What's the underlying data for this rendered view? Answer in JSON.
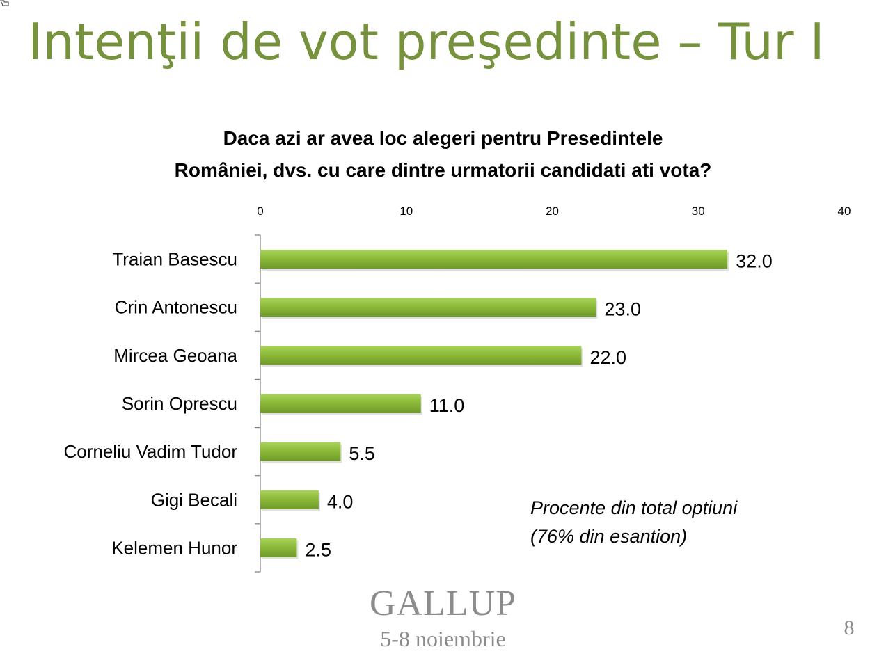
{
  "slide": {
    "title": "Intenţii de vot preşedinte – Tur I",
    "page_number": "8"
  },
  "chart_data": {
    "type": "bar",
    "orientation": "horizontal",
    "title_lines": [
      "Daca azi ar avea loc alegeri pentru Presedintele",
      "României, dvs. cu care dintre urmatorii candidati ati vota?"
    ],
    "categories": [
      "Traian Basescu",
      "Crin Antonescu",
      "Mircea Geoana",
      "Sorin Oprescu",
      "Corneliu Vadim Tudor",
      "Gigi Becali",
      "Kelemen Hunor"
    ],
    "values": [
      32.0,
      23.0,
      22.0,
      11.0,
      5.5,
      4.0,
      2.5
    ],
    "value_labels": [
      "32.0",
      "23.0",
      "22.0",
      "11.0",
      "5.5",
      "4.0",
      "2.5"
    ],
    "xlim": [
      0,
      40
    ],
    "x_ticks": [
      0,
      10,
      20,
      30,
      40
    ],
    "x_tick_labels": [
      "0",
      "10",
      "20",
      "30",
      "40"
    ],
    "x_axis_position": "top",
    "grid": false,
    "bar_color": "#8dba3a",
    "bar_color_light": "#a8d35a",
    "bar_color_dark": "#6f9a2a"
  },
  "note": {
    "line1": "Procente din total optiuni",
    "line2": "(76% din esantion)"
  },
  "source": {
    "logo_text": "GALLUP",
    "date": "5-8 noiembrie"
  },
  "colors": {
    "title": "#76923c",
    "source_gray": "#8c8c8c"
  }
}
